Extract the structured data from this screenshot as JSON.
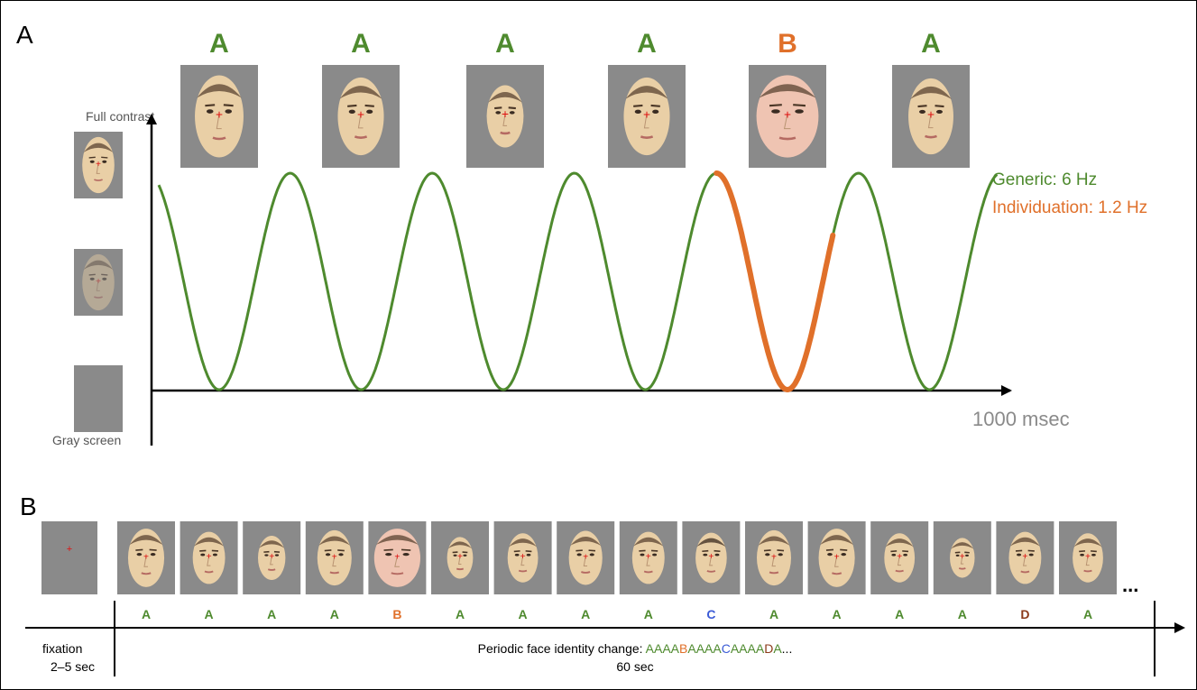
{
  "panel_a": {
    "label": "A",
    "sequence": [
      "A",
      "A",
      "A",
      "A",
      "B",
      "A"
    ],
    "y_axis_top_label": "Full contrast",
    "y_axis_bottom_label": "Gray screen",
    "x_axis_label": "1000 msec",
    "legend": [
      {
        "text": "Generic: 6 Hz",
        "color": "#4e8a2e"
      },
      {
        "text": "Individuation: 1.2 Hz",
        "color": "#e0702a"
      }
    ]
  },
  "panel_b": {
    "label": "B",
    "sequence": [
      "A",
      "A",
      "A",
      "A",
      "B",
      "A",
      "A",
      "A",
      "A",
      "C",
      "A",
      "A",
      "A",
      "A",
      "D",
      "A"
    ],
    "ellipsis": "...",
    "fixation_label": "fixation",
    "fixation_duration": "2–5 sec",
    "caption_prefix": "Periodic face identity change: ",
    "caption_sequence": [
      {
        "text": "AAAA",
        "color": "#4e8a2e"
      },
      {
        "text": "B",
        "color": "#e0702a"
      },
      {
        "text": "AAAA",
        "color": "#4e8a2e"
      },
      {
        "text": "C",
        "color": "#3b5bd6"
      },
      {
        "text": "AAAA",
        "color": "#4e8a2e"
      },
      {
        "text": "D",
        "color": "#8b3a1a"
      },
      {
        "text": "A",
        "color": "#4e8a2e"
      }
    ],
    "caption_suffix": "...",
    "duration": "60 sec"
  },
  "colors": {
    "A": "#4e8a2e",
    "B": "#e0702a",
    "C": "#3b5bd6",
    "D": "#8b3a1a",
    "gray_screen": "#8a8a8a",
    "face_skin": "#e9cfa6",
    "face_b_skin": "#efc4b2"
  }
}
